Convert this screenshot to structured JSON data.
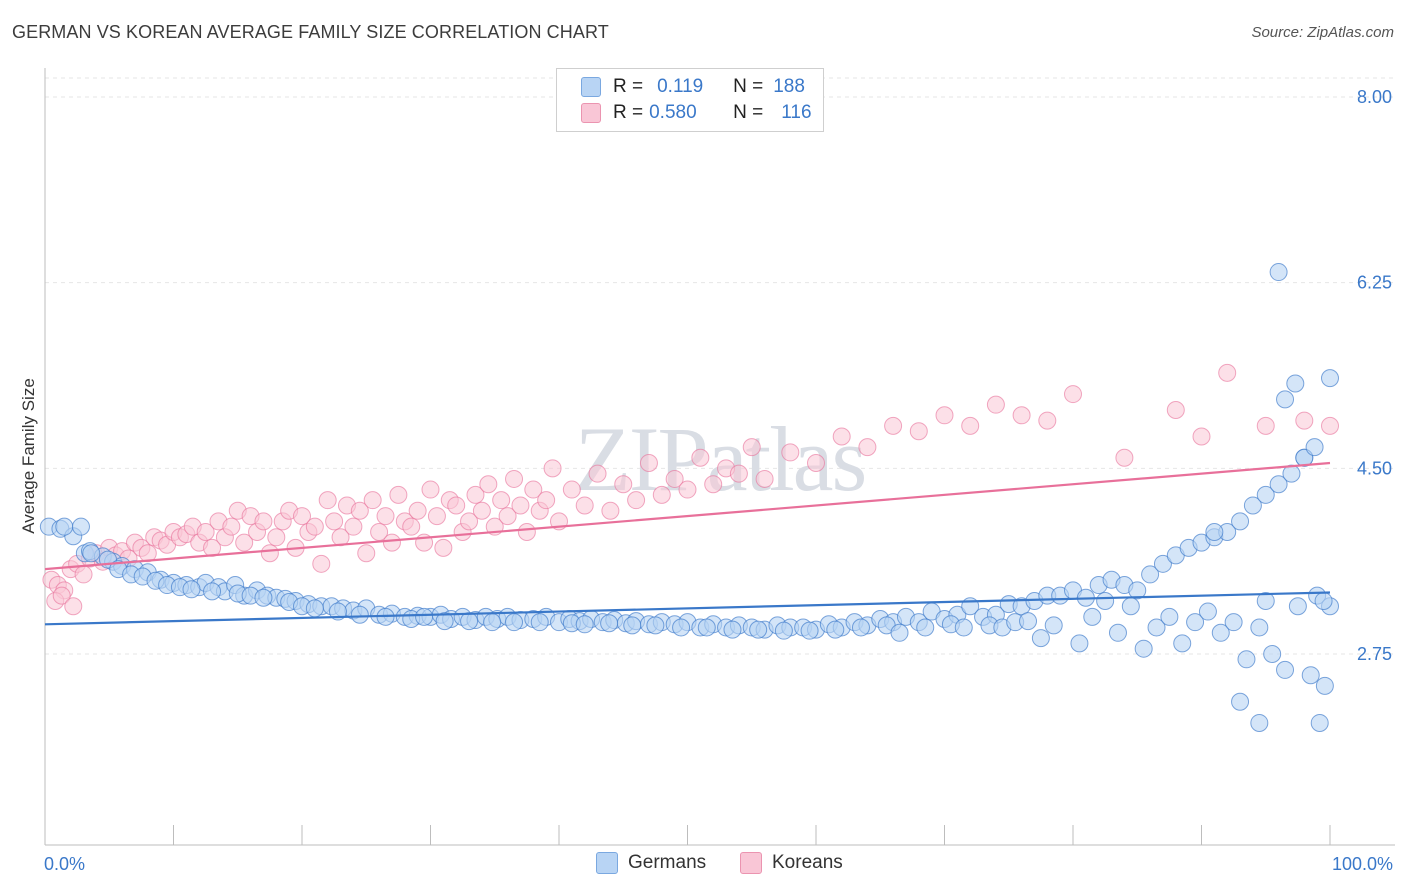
{
  "title": "GERMAN VS KOREAN AVERAGE FAMILY SIZE CORRELATION CHART",
  "source": "Source: ZipAtlas.com",
  "watermark": "ZIPatlas",
  "legend": {
    "rows": [
      {
        "r_label": "R =",
        "r_value": "0.119",
        "n_label": "N =",
        "n_value": "188"
      },
      {
        "r_label": "R =",
        "r_value": "0.580",
        "n_label": "N =",
        "n_value": "116"
      }
    ]
  },
  "bottom_legend": {
    "germans": "Germans",
    "koreans": "Koreans"
  },
  "colors": {
    "blue": "#3a78c9",
    "blue_fill": "#b8d4f4",
    "pink": "#e8709a",
    "pink_fill": "#f9c6d6",
    "grid": "#e6e6e6"
  },
  "chart_data": {
    "type": "scatter",
    "title": "GERMAN VS KOREAN AVERAGE FAMILY SIZE CORRELATION CHART",
    "xlabel": "",
    "ylabel": "Average Family Size",
    "x_tick_labels": [
      "0.0%",
      "100.0%"
    ],
    "y_ticks": [
      2.75,
      4.5,
      6.25,
      8.0
    ],
    "y_tick_labels": [
      "2.75",
      "4.50",
      "6.25",
      "8.00"
    ],
    "xlim": [
      0,
      100
    ],
    "ylim": [
      1.1,
      8.2
    ],
    "grid": true,
    "legend_position": "top-center",
    "series": [
      {
        "name": "Germans",
        "r": 0.119,
        "n": 188,
        "trend": [
          [
            0,
            3.03
          ],
          [
            100,
            3.33
          ]
        ],
        "points": [
          [
            0.3,
            3.95
          ],
          [
            1.2,
            3.93
          ],
          [
            2.2,
            3.86
          ],
          [
            3.1,
            3.7
          ],
          [
            3.5,
            3.72
          ],
          [
            4.5,
            3.67
          ],
          [
            5.3,
            3.62
          ],
          [
            6.0,
            3.58
          ],
          [
            7.0,
            3.55
          ],
          [
            8.0,
            3.52
          ],
          [
            9.0,
            3.45
          ],
          [
            10,
            3.42
          ],
          [
            11,
            3.4
          ],
          [
            12,
            3.38
          ],
          [
            12.5,
            3.42
          ],
          [
            13.5,
            3.38
          ],
          [
            14.0,
            3.34
          ],
          [
            14.8,
            3.4
          ],
          [
            15.5,
            3.3
          ],
          [
            16.5,
            3.35
          ],
          [
            17.3,
            3.3
          ],
          [
            18,
            3.28
          ],
          [
            18.7,
            3.27
          ],
          [
            19.5,
            3.25
          ],
          [
            20.5,
            3.22
          ],
          [
            21.5,
            3.2
          ],
          [
            22.3,
            3.2
          ],
          [
            23.2,
            3.18
          ],
          [
            24,
            3.16
          ],
          [
            25,
            3.18
          ],
          [
            26,
            3.12
          ],
          [
            27,
            3.13
          ],
          [
            28,
            3.1
          ],
          [
            29,
            3.11
          ],
          [
            30,
            3.1
          ],
          [
            30.8,
            3.12
          ],
          [
            31.6,
            3.08
          ],
          [
            32.5,
            3.1
          ],
          [
            33.5,
            3.07
          ],
          [
            34.3,
            3.1
          ],
          [
            35.2,
            3.08
          ],
          [
            36,
            3.1
          ],
          [
            37,
            3.07
          ],
          [
            38,
            3.08
          ],
          [
            39,
            3.1
          ],
          [
            40,
            3.05
          ],
          [
            40.8,
            3.08
          ],
          [
            41.6,
            3.06
          ],
          [
            42.5,
            3.08
          ],
          [
            43.4,
            3.05
          ],
          [
            44.3,
            3.07
          ],
          [
            45.2,
            3.04
          ],
          [
            46,
            3.06
          ],
          [
            47,
            3.03
          ],
          [
            48,
            3.05
          ],
          [
            49,
            3.03
          ],
          [
            50,
            3.05
          ],
          [
            51,
            3.0
          ],
          [
            52,
            3.03
          ],
          [
            53,
            3.0
          ],
          [
            54,
            3.02
          ],
          [
            55,
            3.0
          ],
          [
            56,
            2.98
          ],
          [
            57,
            3.02
          ],
          [
            58,
            3.0
          ],
          [
            59,
            3.0
          ],
          [
            60,
            2.98
          ],
          [
            61,
            3.03
          ],
          [
            62,
            3.0
          ],
          [
            63,
            3.05
          ],
          [
            64,
            3.02
          ],
          [
            65,
            3.08
          ],
          [
            66,
            3.05
          ],
          [
            67,
            3.1
          ],
          [
            68,
            3.05
          ],
          [
            69,
            3.15
          ],
          [
            70,
            3.08
          ],
          [
            71,
            3.12
          ],
          [
            72,
            3.2
          ],
          [
            73,
            3.1
          ],
          [
            74,
            3.12
          ],
          [
            75,
            3.22
          ],
          [
            76,
            3.2
          ],
          [
            77,
            3.25
          ],
          [
            78,
            3.3
          ],
          [
            79,
            3.3
          ],
          [
            80,
            3.35
          ],
          [
            81,
            3.28
          ],
          [
            82,
            3.4
          ],
          [
            83,
            3.45
          ],
          [
            84,
            3.4
          ],
          [
            85,
            3.35
          ],
          [
            86,
            3.5
          ],
          [
            87,
            3.6
          ],
          [
            88,
            3.68
          ],
          [
            89,
            3.75
          ],
          [
            90,
            3.8
          ],
          [
            91,
            3.85
          ],
          [
            92,
            3.9
          ],
          [
            93,
            4.0
          ],
          [
            94,
            4.15
          ],
          [
            95,
            4.25
          ],
          [
            96,
            4.35
          ],
          [
            97,
            4.45
          ],
          [
            98,
            4.6
          ],
          [
            99,
            3.3
          ],
          [
            100,
            3.2
          ],
          [
            1.5,
            3.95
          ],
          [
            2.8,
            3.95
          ],
          [
            3.6,
            3.7
          ],
          [
            4.9,
            3.64
          ],
          [
            5.7,
            3.55
          ],
          [
            6.7,
            3.5
          ],
          [
            7.6,
            3.48
          ],
          [
            8.6,
            3.44
          ],
          [
            9.5,
            3.4
          ],
          [
            10.5,
            3.38
          ],
          [
            11.4,
            3.36
          ],
          [
            13,
            3.34
          ],
          [
            15,
            3.32
          ],
          [
            16,
            3.3
          ],
          [
            17,
            3.28
          ],
          [
            19,
            3.24
          ],
          [
            20,
            3.2
          ],
          [
            21,
            3.18
          ],
          [
            22.8,
            3.15
          ],
          [
            24.5,
            3.12
          ],
          [
            26.5,
            3.1
          ],
          [
            28.5,
            3.08
          ],
          [
            29.5,
            3.1
          ],
          [
            31.1,
            3.06
          ],
          [
            33,
            3.06
          ],
          [
            34.8,
            3.05
          ],
          [
            36.5,
            3.05
          ],
          [
            38.5,
            3.05
          ],
          [
            41,
            3.04
          ],
          [
            42,
            3.03
          ],
          [
            43.9,
            3.04
          ],
          [
            45.7,
            3.02
          ],
          [
            47.5,
            3.02
          ],
          [
            49.5,
            3.0
          ],
          [
            51.5,
            3.0
          ],
          [
            53.5,
            2.98
          ],
          [
            55.5,
            2.98
          ],
          [
            57.5,
            2.97
          ],
          [
            59.5,
            2.97
          ],
          [
            61.5,
            2.98
          ],
          [
            63.5,
            3.0
          ],
          [
            65.5,
            3.02
          ],
          [
            66.5,
            2.95
          ],
          [
            68.5,
            3.0
          ],
          [
            70.5,
            3.03
          ],
          [
            71.5,
            3.0
          ],
          [
            73.5,
            3.02
          ],
          [
            74.5,
            3.0
          ],
          [
            75.5,
            3.05
          ],
          [
            76.5,
            3.06
          ],
          [
            77.5,
            2.9
          ],
          [
            78.5,
            3.02
          ],
          [
            80.5,
            2.85
          ],
          [
            81.5,
            3.1
          ],
          [
            82.5,
            3.25
          ],
          [
            83.5,
            2.95
          ],
          [
            84.5,
            3.2
          ],
          [
            85.5,
            2.8
          ],
          [
            86.5,
            3.0
          ],
          [
            87.5,
            3.1
          ],
          [
            88.5,
            2.85
          ],
          [
            89.5,
            3.05
          ],
          [
            90.5,
            3.15
          ],
          [
            91.5,
            2.95
          ],
          [
            92.5,
            3.05
          ],
          [
            93.5,
            2.7
          ],
          [
            94.5,
            3.0
          ],
          [
            95.5,
            2.75
          ],
          [
            96.5,
            2.6
          ],
          [
            97.5,
            3.2
          ],
          [
            98.5,
            2.55
          ],
          [
            99.5,
            3.25
          ],
          [
            91,
            3.9
          ],
          [
            93,
            2.3
          ],
          [
            94.5,
            2.1
          ],
          [
            95,
            3.25
          ],
          [
            96,
            6.35
          ],
          [
            96.5,
            5.15
          ],
          [
            97.3,
            5.3
          ],
          [
            98,
            4.6
          ],
          [
            98.8,
            4.7
          ],
          [
            99.2,
            2.1
          ],
          [
            99.6,
            2.45
          ],
          [
            100,
            5.35
          ]
        ]
      },
      {
        "name": "Koreans",
        "r": 0.58,
        "n": 116,
        "trend": [
          [
            0,
            3.55
          ],
          [
            100,
            4.55
          ]
        ],
        "points": [
          [
            0.5,
            3.45
          ],
          [
            1,
            3.4
          ],
          [
            1.5,
            3.35
          ],
          [
            2,
            3.55
          ],
          [
            2.5,
            3.6
          ],
          [
            3,
            3.5
          ],
          [
            3.5,
            3.65
          ],
          [
            4,
            3.7
          ],
          [
            4.5,
            3.62
          ],
          [
            5,
            3.75
          ],
          [
            5.5,
            3.68
          ],
          [
            6,
            3.72
          ],
          [
            6.5,
            3.65
          ],
          [
            7,
            3.8
          ],
          [
            7.5,
            3.75
          ],
          [
            8,
            3.7
          ],
          [
            8.5,
            3.85
          ],
          [
            9,
            3.82
          ],
          [
            9.5,
            3.78
          ],
          [
            10,
            3.9
          ],
          [
            10.5,
            3.85
          ],
          [
            11,
            3.88
          ],
          [
            11.5,
            3.95
          ],
          [
            12,
            3.8
          ],
          [
            12.5,
            3.9
          ],
          [
            13,
            3.75
          ],
          [
            13.5,
            4.0
          ],
          [
            14,
            3.85
          ],
          [
            14.5,
            3.95
          ],
          [
            15,
            4.1
          ],
          [
            15.5,
            3.8
          ],
          [
            16,
            4.05
          ],
          [
            16.5,
            3.9
          ],
          [
            17,
            4.0
          ],
          [
            17.5,
            3.7
          ],
          [
            18,
            3.85
          ],
          [
            18.5,
            4.0
          ],
          [
            19,
            4.1
          ],
          [
            19.5,
            3.75
          ],
          [
            20,
            4.05
          ],
          [
            20.5,
            3.9
          ],
          [
            21,
            3.95
          ],
          [
            21.5,
            3.6
          ],
          [
            22,
            4.2
          ],
          [
            22.5,
            4.0
          ],
          [
            23,
            3.85
          ],
          [
            23.5,
            4.15
          ],
          [
            24,
            3.95
          ],
          [
            24.5,
            4.1
          ],
          [
            25,
            3.7
          ],
          [
            25.5,
            4.2
          ],
          [
            26,
            3.9
          ],
          [
            26.5,
            4.05
          ],
          [
            27,
            3.8
          ],
          [
            27.5,
            4.25
          ],
          [
            28,
            4.0
          ],
          [
            28.5,
            3.95
          ],
          [
            29,
            4.1
          ],
          [
            29.5,
            3.8
          ],
          [
            30,
            4.3
          ],
          [
            30.5,
            4.05
          ],
          [
            31,
            3.75
          ],
          [
            31.5,
            4.2
          ],
          [
            32,
            4.15
          ],
          [
            32.5,
            3.9
          ],
          [
            33,
            4.0
          ],
          [
            33.5,
            4.25
          ],
          [
            34,
            4.1
          ],
          [
            34.5,
            4.35
          ],
          [
            35,
            3.95
          ],
          [
            35.5,
            4.2
          ],
          [
            36,
            4.05
          ],
          [
            36.5,
            4.4
          ],
          [
            37,
            4.15
          ],
          [
            37.5,
            3.9
          ],
          [
            38,
            4.3
          ],
          [
            38.5,
            4.1
          ],
          [
            39,
            4.2
          ],
          [
            39.5,
            4.5
          ],
          [
            40,
            4.0
          ],
          [
            41,
            4.3
          ],
          [
            42,
            4.15
          ],
          [
            43,
            4.45
          ],
          [
            44,
            4.1
          ],
          [
            45,
            4.35
          ],
          [
            46,
            4.2
          ],
          [
            47,
            4.55
          ],
          [
            48,
            4.25
          ],
          [
            49,
            4.4
          ],
          [
            50,
            4.3
          ],
          [
            51,
            4.6
          ],
          [
            52,
            4.35
          ],
          [
            53,
            4.5
          ],
          [
            54,
            4.45
          ],
          [
            55,
            4.7
          ],
          [
            56,
            4.4
          ],
          [
            58,
            4.65
          ],
          [
            60,
            4.55
          ],
          [
            62,
            4.8
          ],
          [
            64,
            4.7
          ],
          [
            66,
            4.9
          ],
          [
            68,
            4.85
          ],
          [
            70,
            5.0
          ],
          [
            72,
            4.9
          ],
          [
            74,
            5.1
          ],
          [
            76,
            5.0
          ],
          [
            78,
            4.95
          ],
          [
            80,
            5.2
          ],
          [
            84,
            4.6
          ],
          [
            88,
            5.05
          ],
          [
            90,
            4.8
          ],
          [
            92,
            5.4
          ],
          [
            95,
            4.9
          ],
          [
            98,
            4.95
          ],
          [
            100,
            4.9
          ],
          [
            0.8,
            3.25
          ],
          [
            1.3,
            3.3
          ],
          [
            2.2,
            3.2
          ]
        ]
      }
    ]
  }
}
